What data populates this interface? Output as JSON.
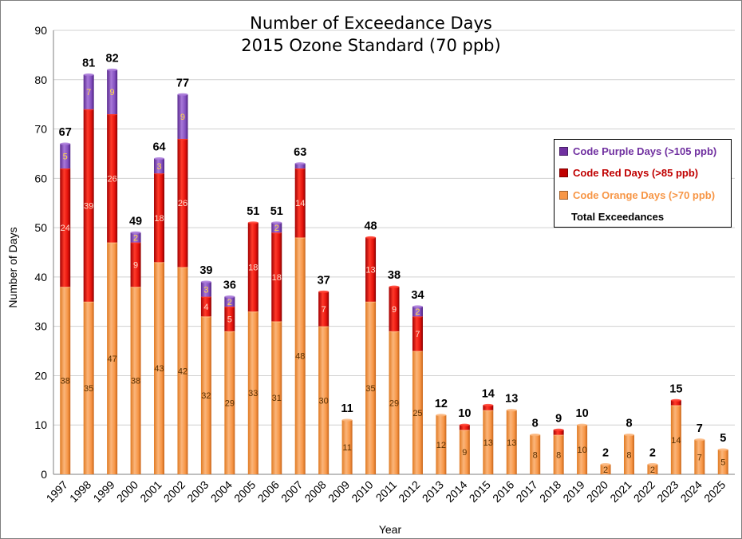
{
  "chart_data": {
    "type": "bar",
    "stacked": true,
    "title": [
      "Number of Exceedance Days",
      "2015 Ozone Standard (70 ppb)"
    ],
    "xlabel": "Year",
    "ylabel": "Number of Days",
    "ylim": [
      0,
      90
    ],
    "yticks": [
      "0",
      "10",
      "20",
      "30",
      "40",
      "50",
      "60",
      "70",
      "80",
      "90"
    ],
    "categories": [
      "1997",
      "1998",
      "1999",
      "2000",
      "2001",
      "2002",
      "2003",
      "2004",
      "2005",
      "2006",
      "2007",
      "2008",
      "2009",
      "2010",
      "2011",
      "2012",
      "2013",
      "2014",
      "2015",
      "2016",
      "2017",
      "2018",
      "2019",
      "2020",
      "2021",
      "2022",
      "2023",
      "2024",
      "2025"
    ],
    "series": [
      {
        "name": "Code Orange Days (>70 ppb)",
        "color": "#f79646",
        "values": [
          38,
          35,
          47,
          38,
          43,
          42,
          32,
          29,
          33,
          31,
          48,
          30,
          11,
          35,
          29,
          25,
          12,
          9,
          13,
          13,
          8,
          8,
          10,
          2,
          8,
          2,
          14,
          7,
          5
        ]
      },
      {
        "name": "Code Red Days (>85 ppb)",
        "color": "#e3120b",
        "values": [
          24,
          39,
          26,
          9,
          18,
          26,
          4,
          5,
          18,
          18,
          14,
          7,
          0,
          13,
          9,
          7,
          0,
          1,
          1,
          0,
          0,
          1,
          0,
          0,
          0,
          0,
          1,
          0,
          0
        ]
      },
      {
        "name": "Code Purple Days (>105 ppb)",
        "color": "#7f3fbf",
        "values": [
          5,
          7,
          9,
          2,
          3,
          9,
          3,
          2,
          0,
          2,
          1,
          0,
          0,
          0,
          0,
          2,
          0,
          0,
          0,
          0,
          0,
          0,
          0,
          0,
          0,
          0,
          0,
          0,
          0
        ]
      }
    ],
    "segment_labels": {
      "orange": [
        "38",
        "35",
        "47",
        "38",
        "43",
        "42",
        "32",
        "29",
        "33",
        "31",
        "48",
        "30",
        "11",
        "35",
        "29",
        "25",
        "12",
        "9",
        "13",
        "13",
        "8",
        "8",
        "10",
        "2",
        "8",
        "2",
        "14",
        "7",
        "5"
      ],
      "red": [
        "24",
        "39",
        "26",
        "9",
        "18",
        "26",
        "4",
        "5",
        "18",
        "18",
        "14",
        "7",
        "",
        "13",
        "9",
        "7",
        "",
        "",
        "",
        "",
        "",
        "",
        "",
        "",
        "",
        "",
        "",
        "",
        ""
      ],
      "purple": [
        "5",
        "7",
        "9",
        "2",
        "3",
        "9",
        "3",
        "2",
        "",
        "2",
        "",
        "",
        "",
        "",
        "",
        "2",
        "",
        "",
        "",
        "",
        "",
        "",
        "",
        "",
        "",
        "",
        "",
        "",
        ""
      ]
    },
    "totals": [
      "67",
      "81",
      "82",
      "49",
      "64",
      "77",
      "39",
      "36",
      "51",
      "51",
      "63",
      "37",
      "11",
      "48",
      "38",
      "34",
      "12",
      "10",
      "14",
      "13",
      "8",
      "9",
      "10",
      "2",
      "8",
      "2",
      "15",
      "7",
      "5"
    ],
    "legend": {
      "position": "right",
      "entries": [
        {
          "label": "Code Purple Days (>105 ppb)",
          "color": "#7030a0"
        },
        {
          "label": "Code Red Days (>85 ppb)",
          "color": "#c00000"
        },
        {
          "label": "Code Orange Days (>70 ppb)",
          "color": "#f79646"
        },
        {
          "label": "Total Exceedances",
          "color": "#000000"
        }
      ]
    }
  }
}
